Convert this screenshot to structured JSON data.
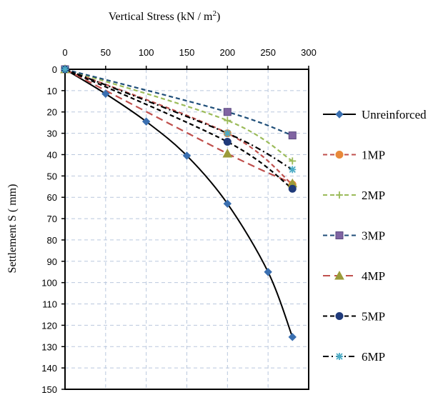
{
  "chart_data": {
    "type": "line",
    "title": "",
    "xlabel": "Vertical  Stress (kN / m",
    "xlabel_sup": "2",
    "xlabel_close": ")",
    "ylabel": "Settlement  S ( mm)",
    "x_axis_position": "top",
    "y_axis_inverted": true,
    "xlim": [
      0,
      300
    ],
    "ylim": [
      0,
      150
    ],
    "x_ticks": [
      "0",
      "50",
      "100",
      "150",
      "200",
      "250",
      "300"
    ],
    "y_ticks": [
      "0",
      "10",
      "20",
      "30",
      "40",
      "50",
      "60",
      "70",
      "80",
      "90",
      "100",
      "110",
      "120",
      "130",
      "140",
      "150"
    ],
    "grid": true,
    "legend_position": "right",
    "series": [
      {
        "name": "Unreinforced",
        "color": "#000000",
        "dash": "solid",
        "marker": "diamond",
        "marker_color": "#3a6fb0",
        "x": [
          0,
          50,
          100,
          150,
          200,
          250,
          280
        ],
        "y": [
          0,
          11.5,
          24.5,
          40.5,
          63,
          95,
          125.5
        ]
      },
      {
        "name": "1MP",
        "color": "#c0504d",
        "dash": "dash",
        "marker": "circle",
        "marker_color": "#e8893a",
        "x": [
          0,
          200,
          280
        ],
        "y": [
          0,
          30,
          54
        ]
      },
      {
        "name": "2MP",
        "color": "#9bbb59",
        "dash": "dash",
        "marker": "plus",
        "marker_color": "#9bbb59",
        "x": [
          0,
          200,
          280
        ],
        "y": [
          0,
          24,
          43
        ]
      },
      {
        "name": "3MP",
        "color": "#1f4e79",
        "dash": "dash",
        "marker": "square",
        "marker_color": "#8064a2",
        "x": [
          0,
          200,
          280
        ],
        "y": [
          0,
          20,
          31
        ]
      },
      {
        "name": "4MP",
        "color": "#c0504d",
        "dash": "longdash",
        "marker": "triangle",
        "marker_color": "#9b9b3a",
        "x": [
          0,
          200,
          280
        ],
        "y": [
          0,
          39.5,
          53.5
        ]
      },
      {
        "name": "5MP",
        "color": "#000000",
        "dash": "dash",
        "marker": "circle",
        "marker_color": "#1f3a7a",
        "x": [
          0,
          200,
          280
        ],
        "y": [
          0,
          34,
          56
        ]
      },
      {
        "name": "6MP",
        "color": "#000000",
        "dash": "dashdot",
        "marker": "asterisk",
        "marker_color": "#4bacc6",
        "x": [
          0,
          200,
          280
        ],
        "y": [
          0,
          30,
          47
        ]
      }
    ]
  }
}
